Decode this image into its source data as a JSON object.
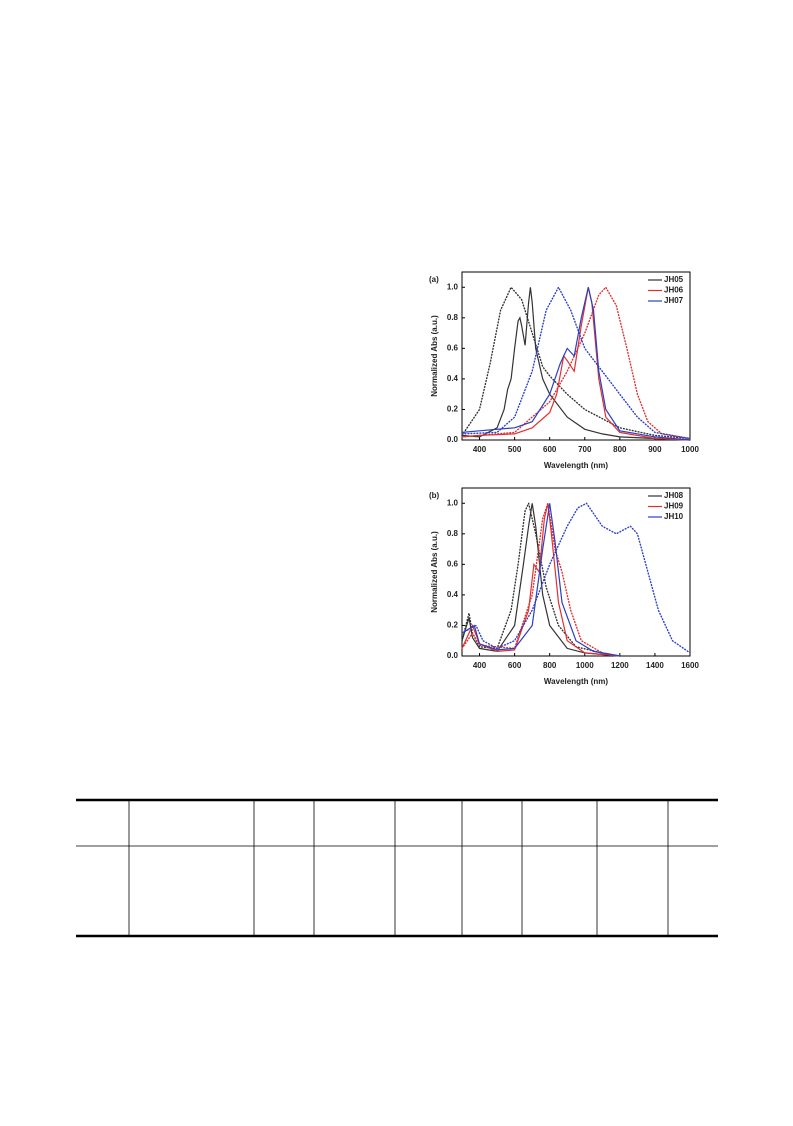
{
  "chart_data": [
    {
      "type": "line",
      "label": "(a)",
      "xlabel": "Wavelength (nm)",
      "ylabel": "Normalized Abs (a.u.)",
      "xlim": [
        350,
        1000
      ],
      "ylim": [
        0,
        1.1
      ],
      "xticks": [
        400,
        500,
        600,
        700,
        800,
        900,
        1000
      ],
      "yticks": [
        {
          "value": 0,
          "label": "0.0"
        },
        0.2,
        0.4,
        0.6,
        0.8,
        {
          "value": 1,
          "label": "1.0"
        }
      ],
      "series": [
        {
          "name": "JH05",
          "color": "#333333",
          "x": [
            350,
            400,
            450,
            470,
            480,
            490,
            500,
            510,
            515,
            520,
            530,
            540,
            545,
            550,
            560,
            580,
            600,
            650,
            700,
            750,
            800,
            900,
            1000
          ],
          "values": [
            0.03,
            0.02,
            0.08,
            0.2,
            0.33,
            0.4,
            0.6,
            0.78,
            0.8,
            0.75,
            0.62,
            0.9,
            1.0,
            0.9,
            0.6,
            0.4,
            0.3,
            0.15,
            0.07,
            0.04,
            0.02,
            0.01,
            0.0
          ]
        },
        {
          "color": "#333333",
          "dash": "dotted",
          "x": [
            350,
            400,
            430,
            460,
            490,
            520,
            550,
            580,
            600,
            650,
            700,
            800,
            900,
            1000
          ],
          "values": [
            0.03,
            0.2,
            0.5,
            0.85,
            1.0,
            0.92,
            0.7,
            0.48,
            0.42,
            0.3,
            0.2,
            0.08,
            0.03,
            0.01
          ]
        },
        {
          "name": "JH06",
          "color": "#e03030",
          "x": [
            350,
            400,
            500,
            550,
            600,
            620,
            640,
            650,
            670,
            690,
            710,
            720,
            740,
            760,
            800,
            900,
            1000
          ],
          "values": [
            0.02,
            0.03,
            0.04,
            0.08,
            0.18,
            0.3,
            0.55,
            0.52,
            0.45,
            0.75,
            1.0,
            0.9,
            0.4,
            0.15,
            0.05,
            0.01,
            0.0
          ]
        },
        {
          "color": "#e03030",
          "dash": "dotted",
          "x": [
            350,
            500,
            600,
            650,
            700,
            740,
            760,
            790,
            820,
            850,
            880,
            920,
            1000
          ],
          "values": [
            0.02,
            0.05,
            0.25,
            0.45,
            0.7,
            0.95,
            1.0,
            0.88,
            0.6,
            0.3,
            0.12,
            0.04,
            0.01
          ]
        },
        {
          "name": "JH07",
          "color": "#2b3fc4",
          "x": [
            350,
            400,
            500,
            550,
            600,
            630,
            650,
            670,
            690,
            710,
            725,
            740,
            760,
            800,
            900,
            1000
          ],
          "values": [
            0.05,
            0.06,
            0.08,
            0.12,
            0.3,
            0.5,
            0.6,
            0.55,
            0.8,
            1.0,
            0.85,
            0.45,
            0.2,
            0.06,
            0.02,
            0.0
          ]
        },
        {
          "color": "#2b3fc4",
          "dash": "dotted",
          "x": [
            350,
            450,
            500,
            550,
            590,
            625,
            660,
            700,
            750,
            800,
            850,
            900,
            1000
          ],
          "values": [
            0.04,
            0.05,
            0.15,
            0.45,
            0.85,
            1.0,
            0.85,
            0.6,
            0.45,
            0.3,
            0.15,
            0.05,
            0.01
          ]
        }
      ]
    },
    {
      "type": "line",
      "label": "(b)",
      "xlabel": "Wavelength (nm)",
      "ylabel": "Normalized Abs (a.u.)",
      "xlim": [
        300,
        1600
      ],
      "ylim": [
        0,
        1.1
      ],
      "xticks": [
        400,
        600,
        800,
        1000,
        1200,
        1400,
        1600
      ],
      "yticks": [
        {
          "value": 0,
          "label": "0.0"
        },
        0.2,
        0.4,
        0.6,
        0.8,
        {
          "value": 1,
          "label": "1.0"
        }
      ],
      "series": [
        {
          "name": "JH08",
          "color": "#333333",
          "x": [
            300,
            340,
            360,
            400,
            500,
            600,
            650,
            680,
            700,
            720,
            760,
            800,
            900,
            1000,
            1200
          ],
          "values": [
            0.1,
            0.25,
            0.12,
            0.05,
            0.03,
            0.2,
            0.6,
            0.85,
            1.0,
            0.85,
            0.4,
            0.2,
            0.05,
            0.02,
            0.0
          ]
        },
        {
          "color": "#333333",
          "dash": "dotted",
          "x": [
            300,
            340,
            360,
            400,
            500,
            580,
            620,
            660,
            680,
            720,
            780,
            850,
            950,
            1100,
            1200
          ],
          "values": [
            0.1,
            0.28,
            0.15,
            0.06,
            0.05,
            0.3,
            0.6,
            0.95,
            1.0,
            0.8,
            0.45,
            0.2,
            0.06,
            0.02,
            0.0
          ]
        },
        {
          "name": "JH09",
          "color": "#e03030",
          "x": [
            300,
            360,
            400,
            500,
            600,
            680,
            710,
            740,
            770,
            790,
            810,
            850,
            900,
            1000,
            1200
          ],
          "values": [
            0.05,
            0.2,
            0.08,
            0.03,
            0.04,
            0.3,
            0.6,
            0.55,
            0.9,
            1.0,
            0.8,
            0.35,
            0.1,
            0.02,
            0.0
          ]
        },
        {
          "color": "#e03030",
          "dash": "dotted",
          "x": [
            300,
            360,
            400,
            600,
            700,
            760,
            790,
            830,
            870,
            920,
            980,
            1100,
            1200
          ],
          "values": [
            0.05,
            0.15,
            0.07,
            0.05,
            0.4,
            0.9,
            1.0,
            0.7,
            0.55,
            0.3,
            0.1,
            0.02,
            0.0
          ]
        },
        {
          "name": "JH10",
          "color": "#2b3fc4",
          "x": [
            300,
            370,
            400,
            500,
            600,
            700,
            760,
            800,
            830,
            870,
            950,
            1050,
            1200
          ],
          "values": [
            0.15,
            0.2,
            0.08,
            0.04,
            0.05,
            0.2,
            0.7,
            1.0,
            0.75,
            0.35,
            0.1,
            0.03,
            0.0
          ]
        },
        {
          "color": "#2b3fc4",
          "dash": "dotted",
          "x": [
            300,
            380,
            420,
            500,
            600,
            700,
            800,
            900,
            960,
            1010,
            1100,
            1180,
            1260,
            1300,
            1360,
            1420,
            1500,
            1600
          ],
          "values": [
            0.15,
            0.2,
            0.1,
            0.05,
            0.1,
            0.3,
            0.6,
            0.85,
            0.97,
            1.0,
            0.85,
            0.8,
            0.85,
            0.8,
            0.55,
            0.3,
            0.1,
            0.02
          ]
        }
      ]
    }
  ]
}
